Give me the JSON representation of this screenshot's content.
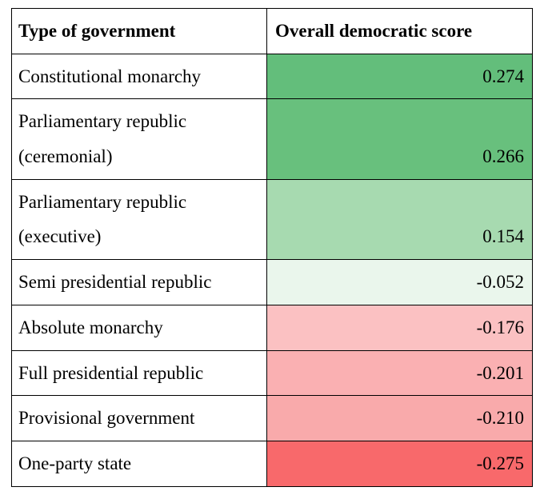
{
  "table": {
    "type": "table",
    "columns": [
      {
        "header": "Type of government",
        "align": "left"
      },
      {
        "header": "Overall democratic score",
        "align": "right"
      }
    ],
    "border_color": "#000000",
    "background_color": "#ffffff",
    "font_family": "Times New Roman",
    "header_font_weight": "bold",
    "body_font_weight": "normal",
    "font_size_pt": 17,
    "rows": [
      {
        "label": "Constitutional monarchy",
        "value": "0.274",
        "value_bg": "#63be7b"
      },
      {
        "label": "Parliamentary republic (ceremonial)",
        "value": "0.266",
        "value_bg": "#68c07d"
      },
      {
        "label": "Parliamentary republic (executive)",
        "value": "0.154",
        "value_bg": "#a7dab0"
      },
      {
        "label": "Semi presidential republic",
        "value": "-0.052",
        "value_bg": "#eaf6ec"
      },
      {
        "label": "Absolute monarchy",
        "value": "-0.176",
        "value_bg": "#fbc1c2"
      },
      {
        "label": "Full presidential republic",
        "value": "-0.201",
        "value_bg": "#fab0b2"
      },
      {
        "label": "Provisional government",
        "value": "-0.210",
        "value_bg": "#f9aaab"
      },
      {
        "label": "One-party state",
        "value": "-0.275",
        "value_bg": "#f8696b"
      }
    ]
  }
}
